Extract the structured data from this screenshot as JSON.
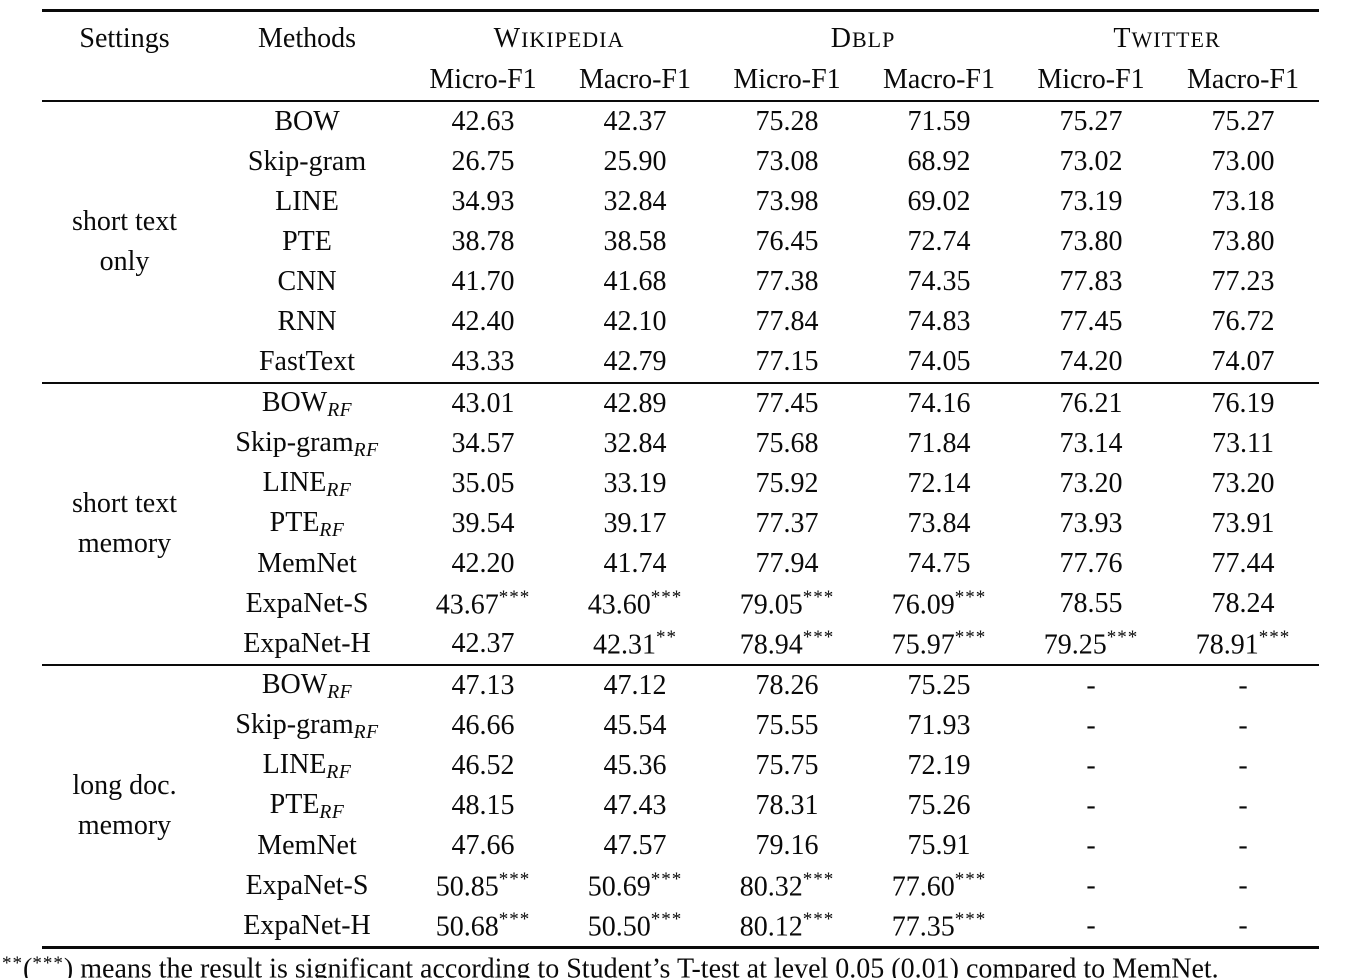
{
  "header": {
    "settings_label": "Settings",
    "methods_label": "Methods",
    "datasets": [
      {
        "name": "Wikipedia"
      },
      {
        "name": "Dblp"
      },
      {
        "name": "Twitter"
      }
    ],
    "metrics": [
      "Micro-F1",
      "Macro-F1",
      "Micro-F1",
      "Macro-F1",
      "Micro-F1",
      "Macro-F1"
    ]
  },
  "sections": [
    {
      "id": "short-text-only",
      "setting_lines": [
        "short text",
        "only"
      ],
      "rows": [
        {
          "method": {
            "name": "BOW"
          },
          "cells": [
            {
              "v": "42.63"
            },
            {
              "v": "42.37"
            },
            {
              "v": "75.28"
            },
            {
              "v": "71.59"
            },
            {
              "v": "75.27"
            },
            {
              "v": "75.27"
            }
          ]
        },
        {
          "method": {
            "name": "Skip-gram"
          },
          "cells": [
            {
              "v": "26.75"
            },
            {
              "v": "25.90"
            },
            {
              "v": "73.08"
            },
            {
              "v": "68.92"
            },
            {
              "v": "73.02"
            },
            {
              "v": "73.00"
            }
          ]
        },
        {
          "method": {
            "name": "LINE"
          },
          "cells": [
            {
              "v": "34.93"
            },
            {
              "v": "32.84"
            },
            {
              "v": "73.98"
            },
            {
              "v": "69.02"
            },
            {
              "v": "73.19"
            },
            {
              "v": "73.18"
            }
          ]
        },
        {
          "method": {
            "name": "PTE"
          },
          "cells": [
            {
              "v": "38.78"
            },
            {
              "v": "38.58"
            },
            {
              "v": "76.45"
            },
            {
              "v": "72.74"
            },
            {
              "v": "73.80"
            },
            {
              "v": "73.80"
            }
          ]
        },
        {
          "method": {
            "name": "CNN"
          },
          "cells": [
            {
              "v": "41.70"
            },
            {
              "v": "41.68"
            },
            {
              "v": "77.38"
            },
            {
              "v": "74.35"
            },
            {
              "v": "77.83"
            },
            {
              "v": "77.23"
            }
          ]
        },
        {
          "method": {
            "name": "RNN"
          },
          "cells": [
            {
              "v": "42.40"
            },
            {
              "v": "42.10"
            },
            {
              "v": "77.84"
            },
            {
              "v": "74.83"
            },
            {
              "v": "77.45"
            },
            {
              "v": "76.72"
            }
          ]
        },
        {
          "method": {
            "name": "FastText"
          },
          "cells": [
            {
              "v": "43.33"
            },
            {
              "v": "42.79"
            },
            {
              "v": "77.15"
            },
            {
              "v": "74.05"
            },
            {
              "v": "74.20"
            },
            {
              "v": "74.07"
            }
          ]
        }
      ]
    },
    {
      "id": "short-text-memory",
      "setting_lines": [
        "short text",
        "memory"
      ],
      "rows": [
        {
          "method": {
            "name": "BOW",
            "sub": "RF"
          },
          "cells": [
            {
              "v": "43.01"
            },
            {
              "v": "42.89"
            },
            {
              "v": "77.45"
            },
            {
              "v": "74.16"
            },
            {
              "v": "76.21"
            },
            {
              "v": "76.19"
            }
          ]
        },
        {
          "method": {
            "name": "Skip-gram",
            "sub": "RF"
          },
          "cells": [
            {
              "v": "34.57"
            },
            {
              "v": "32.84"
            },
            {
              "v": "75.68"
            },
            {
              "v": "71.84"
            },
            {
              "v": "73.14"
            },
            {
              "v": "73.11"
            }
          ]
        },
        {
          "method": {
            "name": "LINE",
            "sub": "RF"
          },
          "cells": [
            {
              "v": "35.05"
            },
            {
              "v": "33.19"
            },
            {
              "v": "75.92"
            },
            {
              "v": "72.14"
            },
            {
              "v": "73.20"
            },
            {
              "v": "73.20"
            }
          ]
        },
        {
          "method": {
            "name": "PTE",
            "sub": "RF"
          },
          "cells": [
            {
              "v": "39.54"
            },
            {
              "v": "39.17"
            },
            {
              "v": "77.37"
            },
            {
              "v": "73.84"
            },
            {
              "v": "73.93"
            },
            {
              "v": "73.91"
            }
          ]
        },
        {
          "method": {
            "name": "MemNet"
          },
          "cells": [
            {
              "v": "42.20"
            },
            {
              "v": "41.74"
            },
            {
              "v": "77.94"
            },
            {
              "v": "74.75"
            },
            {
              "v": "77.76"
            },
            {
              "v": "77.44"
            }
          ]
        },
        {
          "method": {
            "name": "ExpaNet-S"
          },
          "cells": [
            {
              "v": "43.67",
              "sup": "***"
            },
            {
              "v": "43.60",
              "sup": "***"
            },
            {
              "v": "79.05",
              "sup": "***"
            },
            {
              "v": "76.09",
              "sup": "***"
            },
            {
              "v": "78.55"
            },
            {
              "v": "78.24"
            }
          ]
        },
        {
          "method": {
            "name": "ExpaNet-H"
          },
          "cells": [
            {
              "v": "42.37"
            },
            {
              "v": "42.31",
              "sup": "**"
            },
            {
              "v": "78.94",
              "sup": "***"
            },
            {
              "v": "75.97",
              "sup": "***"
            },
            {
              "v": "79.25",
              "sup": "***"
            },
            {
              "v": "78.91",
              "sup": "***"
            }
          ]
        }
      ]
    },
    {
      "id": "long-doc-memory",
      "setting_lines": [
        "long doc.",
        "memory"
      ],
      "rows": [
        {
          "method": {
            "name": "BOW",
            "sub": "RF"
          },
          "cells": [
            {
              "v": "47.13"
            },
            {
              "v": "47.12"
            },
            {
              "v": "78.26"
            },
            {
              "v": "75.25"
            },
            {
              "v": "-"
            },
            {
              "v": "-"
            }
          ]
        },
        {
          "method": {
            "name": "Skip-gram",
            "sub": "RF"
          },
          "cells": [
            {
              "v": "46.66"
            },
            {
              "v": "45.54"
            },
            {
              "v": "75.55"
            },
            {
              "v": "71.93"
            },
            {
              "v": "-"
            },
            {
              "v": "-"
            }
          ]
        },
        {
          "method": {
            "name": "LINE",
            "sub": "RF"
          },
          "cells": [
            {
              "v": "46.52"
            },
            {
              "v": "45.36"
            },
            {
              "v": "75.75"
            },
            {
              "v": "72.19"
            },
            {
              "v": "-"
            },
            {
              "v": "-"
            }
          ]
        },
        {
          "method": {
            "name": "PTE",
            "sub": "RF"
          },
          "cells": [
            {
              "v": "48.15"
            },
            {
              "v": "47.43"
            },
            {
              "v": "78.31"
            },
            {
              "v": "75.26"
            },
            {
              "v": "-"
            },
            {
              "v": "-"
            }
          ]
        },
        {
          "method": {
            "name": "MemNet"
          },
          "cells": [
            {
              "v": "47.66"
            },
            {
              "v": "47.57"
            },
            {
              "v": "79.16"
            },
            {
              "v": "75.91"
            },
            {
              "v": "-"
            },
            {
              "v": "-"
            }
          ]
        },
        {
          "method": {
            "name": "ExpaNet-S"
          },
          "cells": [
            {
              "v": "50.85",
              "sup": "***"
            },
            {
              "v": "50.69",
              "sup": "***"
            },
            {
              "v": "80.32",
              "sup": "***"
            },
            {
              "v": "77.60",
              "sup": "***"
            },
            {
              "v": "-"
            },
            {
              "v": "-"
            }
          ]
        },
        {
          "method": {
            "name": "ExpaNet-H"
          },
          "cells": [
            {
              "v": "50.68",
              "sup": "***"
            },
            {
              "v": "50.50",
              "sup": "***"
            },
            {
              "v": "80.12",
              "sup": "***"
            },
            {
              "v": "77.35",
              "sup": "***"
            },
            {
              "v": "-"
            },
            {
              "v": "-"
            }
          ]
        }
      ]
    }
  ],
  "footnote": {
    "stars2": "**",
    "open_paren": "(",
    "stars3": "***",
    "rest": ") means the result is significant according to Student’s T-test at level 0.05 (0.01) compared to MemNet."
  }
}
